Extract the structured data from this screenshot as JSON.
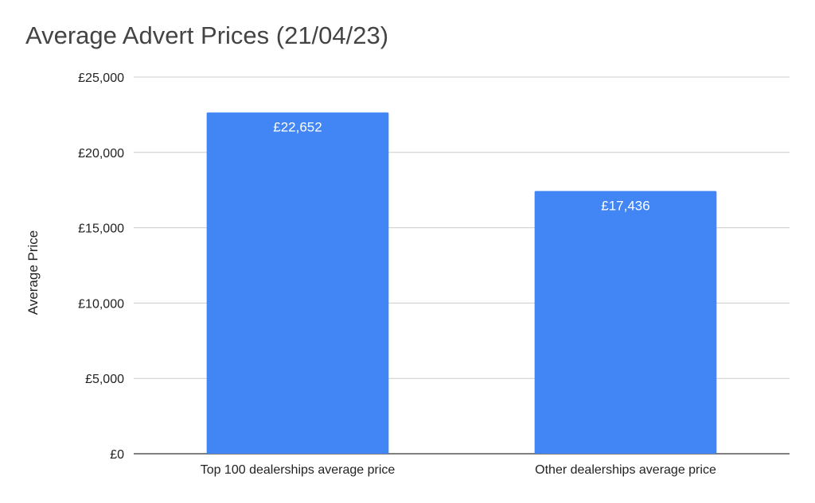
{
  "chart_data": {
    "type": "bar",
    "title": "Average Advert Prices (21/04/23)",
    "ylabel": "Average Price",
    "xlabel": "",
    "categories": [
      "Top 100 dealerships average price",
      "Other dealerships average price"
    ],
    "values": [
      22652,
      17436
    ],
    "data_labels": [
      "£22,652",
      "£17,436"
    ],
    "ylim": [
      0,
      25000
    ],
    "y_ticks": [
      0,
      5000,
      10000,
      15000,
      20000,
      25000
    ],
    "y_tick_labels": [
      "£0",
      "£5,000",
      "£10,000",
      "£15,000",
      "£20,000",
      "£25,000"
    ],
    "grid": true,
    "legend": "none",
    "bar_color": "#4285f4",
    "gridline_color": "#cccccc",
    "axis_color": "#333333"
  }
}
